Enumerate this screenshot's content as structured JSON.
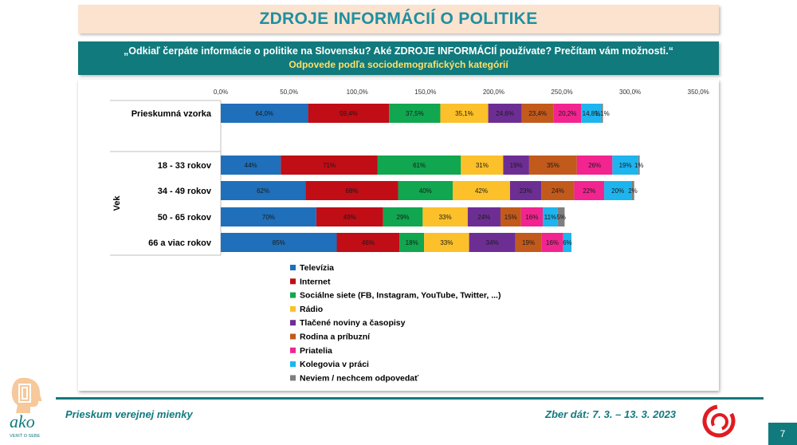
{
  "title": "ZDROJE INFORMÁCIÍ O POLITIKE",
  "question": "„Odkiaľ čerpáte informácie o politike na Slovensku? Aké ZDROJE INFORMÁCIÍ používate? Prečítam vám možnosti.“",
  "subtitle": "Odpovede podľa sociodemografických kategórií",
  "chart_data": {
    "type": "bar",
    "orientation": "horizontal",
    "stacked": true,
    "xlim": [
      0,
      350
    ],
    "x_ticks": [
      "0,0%",
      "50,0%",
      "100,0%",
      "150,0%",
      "200,0%",
      "250,0%",
      "300,0%",
      "350,0%"
    ],
    "group_label": "Vek",
    "categories": [
      "Prieskumná vzorka",
      "18 - 33 rokov",
      "34 - 49 rokov",
      "50 - 65 rokov",
      "66 a viac rokov"
    ],
    "legend_position": "bottom-left",
    "series": [
      {
        "name": "Televízia",
        "color": "#1f6fba",
        "values": [
          64.0,
          44,
          62,
          70,
          85
        ],
        "labels": [
          "64,0%",
          "44%",
          "62%",
          "70%",
          "85%"
        ]
      },
      {
        "name": "Internet",
        "color": "#c00d16",
        "values": [
          59.4,
          71,
          68,
          49,
          46
        ],
        "labels": [
          "59,4%",
          "71%",
          "68%",
          "49%",
          "46%"
        ]
      },
      {
        "name": "Sociálne siete (FB, Instagram, YouTube, Twitter, ...)",
        "color": "#11a650",
        "values": [
          37.5,
          61,
          40,
          29,
          18
        ],
        "labels": [
          "37,5%",
          "61%",
          "40%",
          "29%",
          "18%"
        ]
      },
      {
        "name": "Rádio",
        "color": "#fcc02a",
        "values": [
          35.1,
          31,
          42,
          33,
          33
        ],
        "labels": [
          "35,1%",
          "31%",
          "42%",
          "33%",
          "33%"
        ]
      },
      {
        "name": "Tlačené noviny a časopisy",
        "color": "#6d2e94",
        "values": [
          24.6,
          19,
          23,
          24,
          34
        ],
        "labels": [
          "24,6%",
          "19%",
          "23%",
          "24%",
          "34%"
        ]
      },
      {
        "name": "Rodina a príbuzní",
        "color": "#c25a1c",
        "values": [
          23.4,
          35,
          24,
          15,
          19
        ],
        "labels": [
          "23,4%",
          "35%",
          "24%",
          "15%",
          "19%"
        ]
      },
      {
        "name": "Priatelia",
        "color": "#f2248f",
        "values": [
          20.2,
          26,
          22,
          16,
          16
        ],
        "labels": [
          "20,2%",
          "26%",
          "22%",
          "16%",
          "16%"
        ]
      },
      {
        "name": "Kolegovia v práci",
        "color": "#1eb4ee",
        "values": [
          14.8,
          19,
          20,
          11,
          6
        ],
        "labels": [
          "14,8%",
          "19%",
          "20%",
          "11%",
          "6%"
        ]
      },
      {
        "name": "Neviem / nechcem odpovedať",
        "color": "#7f7f7f",
        "values": [
          1.1,
          1,
          2,
          5,
          0
        ],
        "labels": [
          "1,1%",
          "1%",
          "2%",
          "5%",
          ""
        ]
      }
    ]
  },
  "footer": {
    "left": "Prieskum verejnej mienky",
    "right": "Zber dát: 7. 3. – 13. 3. 2023",
    "logo_text": "ako",
    "logo_tagline": "VERIŤ O SEBE",
    "page_number": "7"
  }
}
